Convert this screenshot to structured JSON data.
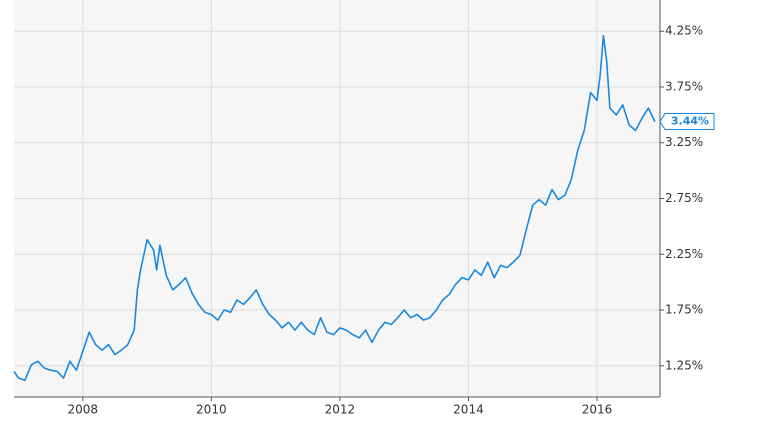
{
  "chart_data": {
    "type": "line",
    "x": [
      2006.93,
      2007.0,
      2007.1,
      2007.2,
      2007.3,
      2007.4,
      2007.5,
      2007.6,
      2007.7,
      2007.8,
      2007.9,
      2008.0,
      2008.1,
      2008.2,
      2008.3,
      2008.4,
      2008.5,
      2008.6,
      2008.7,
      2008.8,
      2008.85,
      2008.9,
      2009.0,
      2009.1,
      2009.15,
      2009.2,
      2009.3,
      2009.4,
      2009.5,
      2009.6,
      2009.7,
      2009.8,
      2009.9,
      2010.0,
      2010.1,
      2010.2,
      2010.3,
      2010.4,
      2010.5,
      2010.6,
      2010.7,
      2010.8,
      2010.9,
      2011.0,
      2011.1,
      2011.2,
      2011.3,
      2011.4,
      2011.5,
      2011.6,
      2011.7,
      2011.8,
      2011.9,
      2012.0,
      2012.1,
      2012.2,
      2012.3,
      2012.4,
      2012.5,
      2012.6,
      2012.7,
      2012.8,
      2012.9,
      2013.0,
      2013.1,
      2013.2,
      2013.3,
      2013.4,
      2013.5,
      2013.6,
      2013.7,
      2013.8,
      2013.9,
      2014.0,
      2014.1,
      2014.2,
      2014.3,
      2014.4,
      2014.5,
      2014.6,
      2014.7,
      2014.8,
      2014.9,
      2015.0,
      2015.1,
      2015.2,
      2015.3,
      2015.4,
      2015.5,
      2015.6,
      2015.7,
      2015.8,
      2015.9,
      2016.0,
      2016.05,
      2016.1,
      2016.15,
      2016.2,
      2016.3,
      2016.4,
      2016.5,
      2016.6,
      2016.7,
      2016.8,
      2016.9
    ],
    "values": [
      1.2,
      1.14,
      1.12,
      1.26,
      1.29,
      1.23,
      1.21,
      1.2,
      1.14,
      1.29,
      1.21,
      1.38,
      1.55,
      1.44,
      1.39,
      1.44,
      1.35,
      1.39,
      1.44,
      1.57,
      1.93,
      2.11,
      2.38,
      2.29,
      2.11,
      2.33,
      2.06,
      1.93,
      1.98,
      2.04,
      1.9,
      1.8,
      1.73,
      1.71,
      1.66,
      1.75,
      1.73,
      1.84,
      1.8,
      1.86,
      1.93,
      1.8,
      1.71,
      1.66,
      1.59,
      1.64,
      1.57,
      1.64,
      1.57,
      1.53,
      1.68,
      1.55,
      1.53,
      1.59,
      1.57,
      1.53,
      1.5,
      1.57,
      1.46,
      1.57,
      1.64,
      1.62,
      1.68,
      1.75,
      1.68,
      1.71,
      1.66,
      1.68,
      1.75,
      1.84,
      1.89,
      1.98,
      2.04,
      2.02,
      2.11,
      2.06,
      2.18,
      2.04,
      2.15,
      2.13,
      2.18,
      2.24,
      2.47,
      2.69,
      2.74,
      2.69,
      2.83,
      2.74,
      2.78,
      2.92,
      3.18,
      3.36,
      3.7,
      3.63,
      3.86,
      4.21,
      3.99,
      3.56,
      3.5,
      3.59,
      3.41,
      3.36,
      3.47,
      3.56,
      3.44
    ],
    "value_labels": [
      null,
      null,
      null,
      null,
      null,
      null,
      null,
      null,
      null,
      null,
      null,
      null,
      null,
      null,
      null,
      null,
      null,
      null,
      null,
      null,
      null,
      null,
      null,
      null,
      null,
      null,
      null,
      null,
      null,
      null,
      null,
      null,
      null,
      null,
      null,
      null,
      null,
      null,
      null,
      null,
      null,
      null,
      null,
      null,
      null,
      null,
      null,
      null,
      null,
      null,
      null,
      null,
      null,
      null,
      null,
      null,
      null,
      null,
      null,
      null,
      null,
      null,
      null,
      null,
      null,
      null,
      null,
      null,
      null,
      null,
      null,
      null,
      null,
      null,
      null,
      null,
      null,
      null,
      null,
      null,
      null,
      null,
      null,
      null,
      null,
      null,
      null,
      null,
      null,
      null,
      null,
      null,
      null,
      null,
      null,
      null,
      null,
      null,
      null,
      null,
      null,
      null,
      null,
      null,
      "3.44%"
    ],
    "color": "#1a88e0",
    "xlim": [
      2006.93,
      2016.98
    ],
    "xticks": [
      2008,
      2010,
      2012,
      2014,
      2016
    ],
    "ylim": [
      0.97,
      4.53
    ],
    "yticks": [
      {
        "value": 1.25,
        "label": "1.25%"
      },
      {
        "value": 1.75,
        "label": "1.75%"
      },
      {
        "value": 2.25,
        "label": "2.25%"
      },
      {
        "value": 2.75,
        "label": "2.75%"
      },
      {
        "value": 3.25,
        "label": "3.25%"
      },
      {
        "value": 3.75,
        "label": "3.75%"
      },
      {
        "value": 4.25,
        "label": "4.25%"
      }
    ],
    "grid": true
  }
}
